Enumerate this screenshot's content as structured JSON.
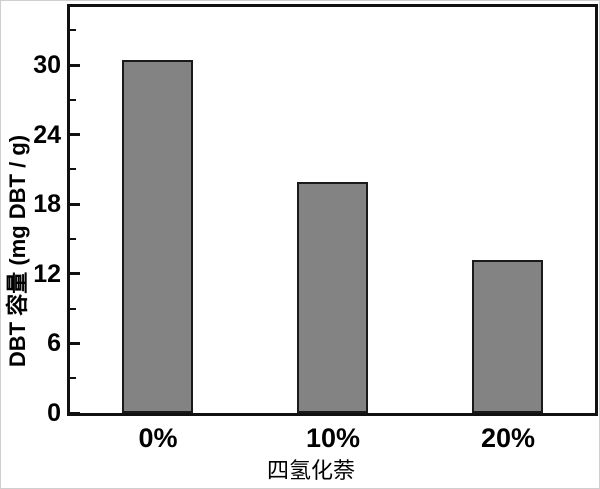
{
  "chart_data": {
    "type": "bar",
    "categories": [
      "0%",
      "10%",
      "20%"
    ],
    "values": [
      30.4,
      19.9,
      13.2
    ],
    "title": "",
    "xlabel": "四氢化萘",
    "ylabel": "DBT 容量 (mg DBT / g)",
    "ylim": [
      0,
      35
    ],
    "yticks_major": [
      0,
      6,
      12,
      18,
      24,
      30
    ],
    "yticks_minor": [
      3,
      9,
      15,
      21,
      27,
      33
    ],
    "grid": false,
    "legend_position": "none",
    "colors": {
      "bar_fill": "#838383",
      "bar_edge": "#1a1a1a",
      "axis": "#111111",
      "text": "#000000",
      "background": "#ffffff"
    }
  }
}
